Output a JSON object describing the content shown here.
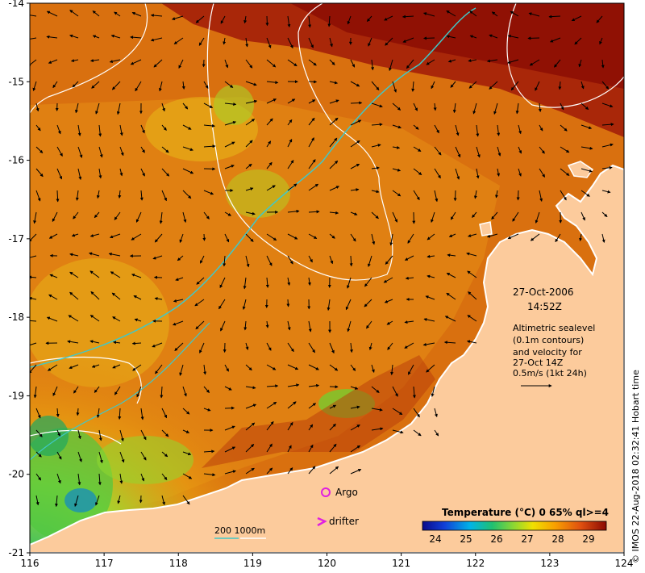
{
  "map": {
    "x_ticks": [
      "116",
      "117",
      "118",
      "119",
      "120",
      "121",
      "122",
      "123",
      "124"
    ],
    "y_ticks": [
      "-14",
      "-15",
      "-16",
      "-17",
      "-18",
      "-19",
      "-20",
      "-21"
    ],
    "date": "27-Oct-2006",
    "time": "14:52Z",
    "altimetry_note": [
      "Altimetric sealevel",
      "(0.1m contours)",
      "and velocity for",
      "27-Oct 14Z",
      "0.5m/s (1kt 24h)"
    ],
    "legend_argo": "Argo",
    "legend_drifter": "drifter",
    "depth_contours": "200  1000m",
    "colorbar_title": "Temperature (°C) 0 65% ql>=4",
    "colorbar_ticks": [
      "24",
      "25",
      "26",
      "27",
      "28",
      "29"
    ],
    "credit": "© IMOS 22-Aug-2018 02:32:41 Hobart time",
    "colors": {
      "land": "#fccb9c",
      "warm": "#d96410",
      "hot": "#8e0f06",
      "cool": "#8fd62a",
      "contour": "#40c8c8"
    }
  }
}
